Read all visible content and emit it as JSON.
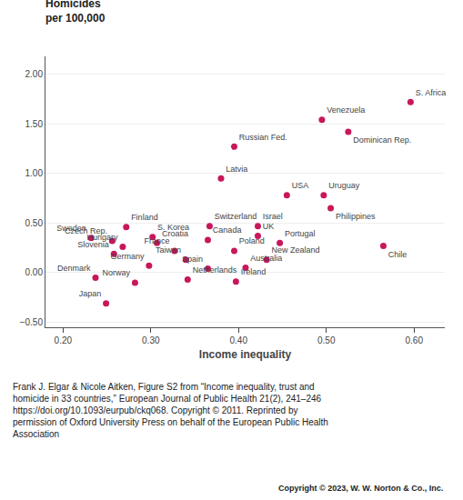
{
  "chart_data": {
    "type": "scatter",
    "title": "Homicides",
    "subtitle": "per 100,000",
    "xlabel": "Income inequality",
    "x": [
      0.596,
      0.495,
      0.525,
      0.395,
      0.38,
      0.455,
      0.497,
      0.505,
      0.565,
      0.422,
      0.367,
      0.272,
      0.422,
      0.365,
      0.232,
      0.302,
      0.256,
      0.307,
      0.447,
      0.268,
      0.327,
      0.395,
      0.258,
      0.34,
      0.432,
      0.298,
      0.365,
      0.408,
      0.237,
      0.342,
      0.397,
      0.282,
      0.249
    ],
    "values": [
      1.72,
      1.54,
      1.42,
      1.27,
      0.95,
      0.78,
      0.78,
      0.65,
      0.27,
      0.47,
      0.47,
      0.46,
      0.37,
      0.33,
      0.35,
      0.36,
      0.32,
      0.3,
      0.3,
      0.26,
      0.22,
      0.22,
      0.19,
      0.13,
      0.13,
      0.07,
      0.04,
      0.05,
      -0.05,
      -0.07,
      -0.09,
      -0.1,
      -0.31
    ],
    "labels": [
      "S. Africa",
      "Venezuela",
      "Dominican Rep.",
      "Russian Fed.",
      "Latvia",
      "USA",
      "Uruguay",
      "Philippines",
      "Chile",
      "Israel",
      "Switzerland",
      "Finland",
      "UK",
      "Canada",
      "Sweden",
      "S. Korea",
      "Czech Rep.",
      "Croatia",
      "Portugal",
      "Hungary",
      "France",
      "Poland",
      "Slovenia",
      "Taiwan",
      "New Zealand",
      "Germany",
      "Spain",
      "Australia",
      "Denmark",
      "Netherlands",
      "Ireland",
      "Norway",
      "Japan"
    ],
    "color": "#C8175A",
    "xlim": [
      0.18,
      0.635
    ],
    "ylim": [
      -0.55,
      2.18
    ],
    "xticks": [
      {
        "value": 0.2,
        "label": "0.20"
      },
      {
        "value": 0.3,
        "label": "0.30"
      },
      {
        "value": 0.4,
        "label": "0.40"
      },
      {
        "value": 0.5,
        "label": "0.50"
      },
      {
        "value": 0.6,
        "label": "0.60"
      }
    ],
    "yticks": [
      {
        "value": -0.5,
        "label": "−0.50"
      },
      {
        "value": 0,
        "label": "0.00"
      },
      {
        "value": 0.5,
        "label": "0.50"
      },
      {
        "value": 1,
        "label": "1.00"
      },
      {
        "value": 1.5,
        "label": "1.50"
      },
      {
        "value": 2,
        "label": "2.00"
      }
    ],
    "grid": "y",
    "caption": [
      "Frank J. Elgar & Nicole Aitken, Figure S2 from “Income inequality, trust and",
      "homicide in 33 countries,” European Journal of Public Health 21(2), 241–246",
      "https://doi.org/10.1093/eurpub/ckq068. Copyright © 2011. Reprinted by",
      "permission of Oxford University Press on behalf of the European Public Health",
      "Association"
    ],
    "copyright": "Copyright © 2023, W. W. Norton & Co., Inc."
  }
}
